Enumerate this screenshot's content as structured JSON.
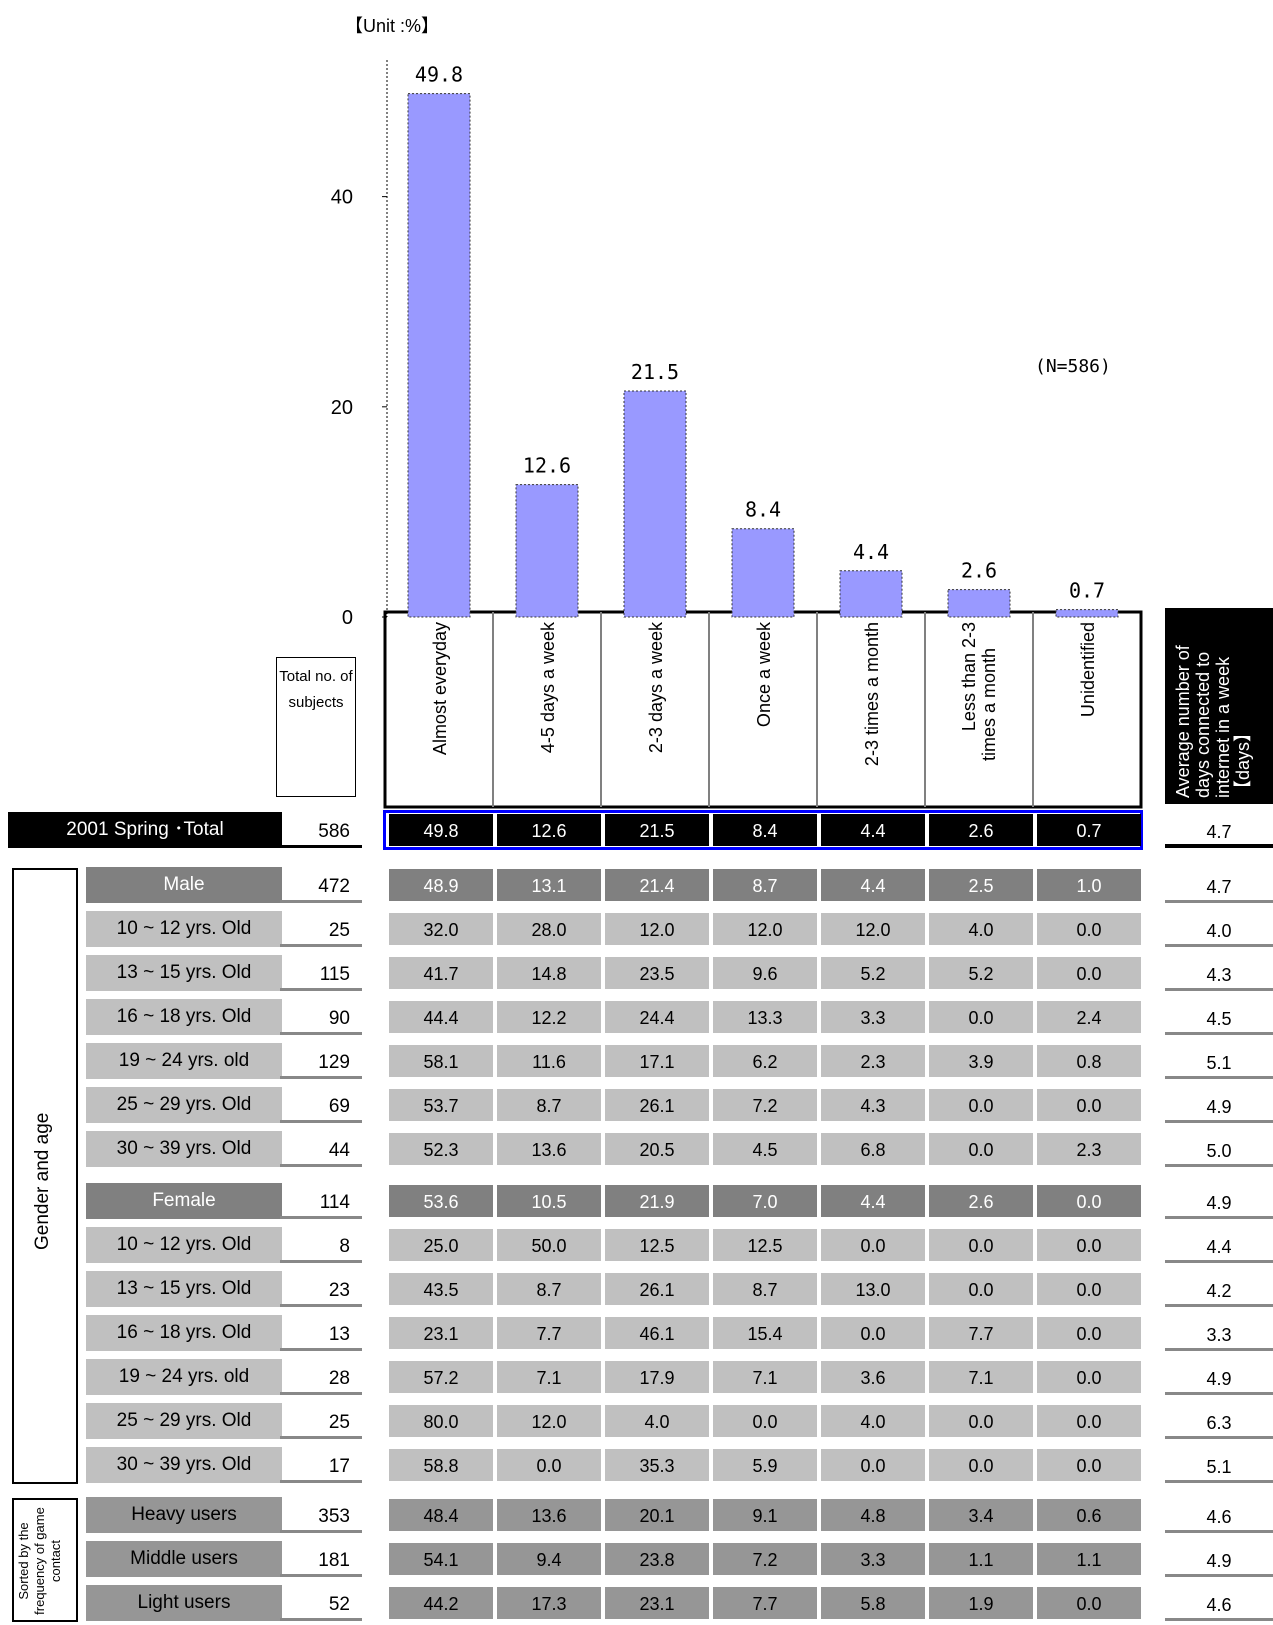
{
  "unit_label": "【Unit :%】",
  "n_label": "(N=586)",
  "chart_data": {
    "type": "bar",
    "categories": [
      "Almost everyday",
      "4-5 days a week",
      "2-3 days a week",
      "Once a week",
      "2-3 times a month",
      "Less than 2-3 times a month",
      "Unidentified"
    ],
    "values": [
      49.8,
      12.6,
      21.5,
      8.4,
      4.4,
      2.6,
      0.7
    ],
    "ylim": [
      0,
      53
    ],
    "yticks": [
      "0",
      "20",
      "40"
    ],
    "bar_color": "#9999ff",
    "value_labels": [
      "49.8",
      "12.6",
      "21.5",
      "8.4",
      "4.4",
      "2.6",
      "0.7"
    ]
  },
  "headers": {
    "total_subjects": "Total no. of subjects",
    "average_days": "Average number of days connected to internet in a week【days】"
  },
  "groups": {
    "gender_age": "Gender and age",
    "frequency": "Sorted by the frequency of game contact"
  },
  "rows": [
    {
      "label": "2001 Spring ･Total",
      "count": "586",
      "values": [
        "49.8",
        "12.6",
        "21.5",
        "8.4",
        "4.4",
        "2.6",
        "0.7"
      ],
      "avg": "4.7",
      "style": "total"
    },
    {
      "label": "Male",
      "count": "472",
      "values": [
        "48.9",
        "13.1",
        "21.4",
        "8.7",
        "4.4",
        "2.5",
        "1.0"
      ],
      "avg": "4.7",
      "style": "dark"
    },
    {
      "label": "10 ~ 12 yrs. Old",
      "count": "25",
      "values": [
        "32.0",
        "28.0",
        "12.0",
        "12.0",
        "12.0",
        "4.0",
        "0.0"
      ],
      "avg": "4.0",
      "style": "light"
    },
    {
      "label": "13 ~ 15 yrs. Old",
      "count": "115",
      "values": [
        "41.7",
        "14.8",
        "23.5",
        "9.6",
        "5.2",
        "5.2",
        "0.0"
      ],
      "avg": "4.3",
      "style": "light"
    },
    {
      "label": "16 ~ 18 yrs. Old",
      "count": "90",
      "values": [
        "44.4",
        "12.2",
        "24.4",
        "13.3",
        "3.3",
        "0.0",
        "2.4"
      ],
      "avg": "4.5",
      "style": "light"
    },
    {
      "label": "19 ~ 24 yrs. old",
      "count": "129",
      "values": [
        "58.1",
        "11.6",
        "17.1",
        "6.2",
        "2.3",
        "3.9",
        "0.8"
      ],
      "avg": "5.1",
      "style": "light"
    },
    {
      "label": "25 ~ 29 yrs. Old",
      "count": "69",
      "values": [
        "53.7",
        "8.7",
        "26.1",
        "7.2",
        "4.3",
        "0.0",
        "0.0"
      ],
      "avg": "4.9",
      "style": "light"
    },
    {
      "label": "30 ~ 39 yrs. Old",
      "count": "44",
      "values": [
        "52.3",
        "13.6",
        "20.5",
        "4.5",
        "6.8",
        "0.0",
        "2.3"
      ],
      "avg": "5.0",
      "style": "light"
    },
    {
      "label": "Female",
      "count": "114",
      "values": [
        "53.6",
        "10.5",
        "21.9",
        "7.0",
        "4.4",
        "2.6",
        "0.0"
      ],
      "avg": "4.9",
      "style": "dark"
    },
    {
      "label": "10 ~ 12 yrs. Old",
      "count": "8",
      "values": [
        "25.0",
        "50.0",
        "12.5",
        "12.5",
        "0.0",
        "0.0",
        "0.0"
      ],
      "avg": "4.4",
      "style": "light"
    },
    {
      "label": "13 ~ 15 yrs. Old",
      "count": "23",
      "values": [
        "43.5",
        "8.7",
        "26.1",
        "8.7",
        "13.0",
        "0.0",
        "0.0"
      ],
      "avg": "4.2",
      "style": "light"
    },
    {
      "label": "16 ~ 18 yrs. Old",
      "count": "13",
      "values": [
        "23.1",
        "7.7",
        "46.1",
        "15.4",
        "0.0",
        "7.7",
        "0.0"
      ],
      "avg": "3.3",
      "style": "light"
    },
    {
      "label": "19 ~ 24 yrs. old",
      "count": "28",
      "values": [
        "57.2",
        "7.1",
        "17.9",
        "7.1",
        "3.6",
        "7.1",
        "0.0"
      ],
      "avg": "4.9",
      "style": "light"
    },
    {
      "label": "25 ~ 29 yrs. Old",
      "count": "25",
      "values": [
        "80.0",
        "12.0",
        "4.0",
        "0.0",
        "4.0",
        "0.0",
        "0.0"
      ],
      "avg": "6.3",
      "style": "light"
    },
    {
      "label": "30 ~ 39 yrs. Old",
      "count": "17",
      "values": [
        "58.8",
        "0.0",
        "35.3",
        "5.9",
        "0.0",
        "0.0",
        "0.0"
      ],
      "avg": "5.1",
      "style": "light"
    },
    {
      "label": "Heavy users",
      "count": "353",
      "values": [
        "48.4",
        "13.6",
        "20.1",
        "9.1",
        "4.8",
        "3.4",
        "0.6"
      ],
      "avg": "4.6",
      "style": "mid"
    },
    {
      "label": "Middle users",
      "count": "181",
      "values": [
        "54.1",
        "9.4",
        "23.8",
        "7.2",
        "3.3",
        "1.1",
        "1.1"
      ],
      "avg": "4.9",
      "style": "mid"
    },
    {
      "label": "Light users",
      "count": "52",
      "values": [
        "44.2",
        "17.3",
        "23.1",
        "7.7",
        "5.8",
        "1.9",
        "0.0"
      ],
      "avg": "4.6",
      "style": "mid"
    }
  ],
  "colors": {
    "dark_row": "#808080",
    "light_row": "#c0c0c0",
    "mid_row": "#969696",
    "total_row": "#000000",
    "total_border": "#0000ff"
  }
}
